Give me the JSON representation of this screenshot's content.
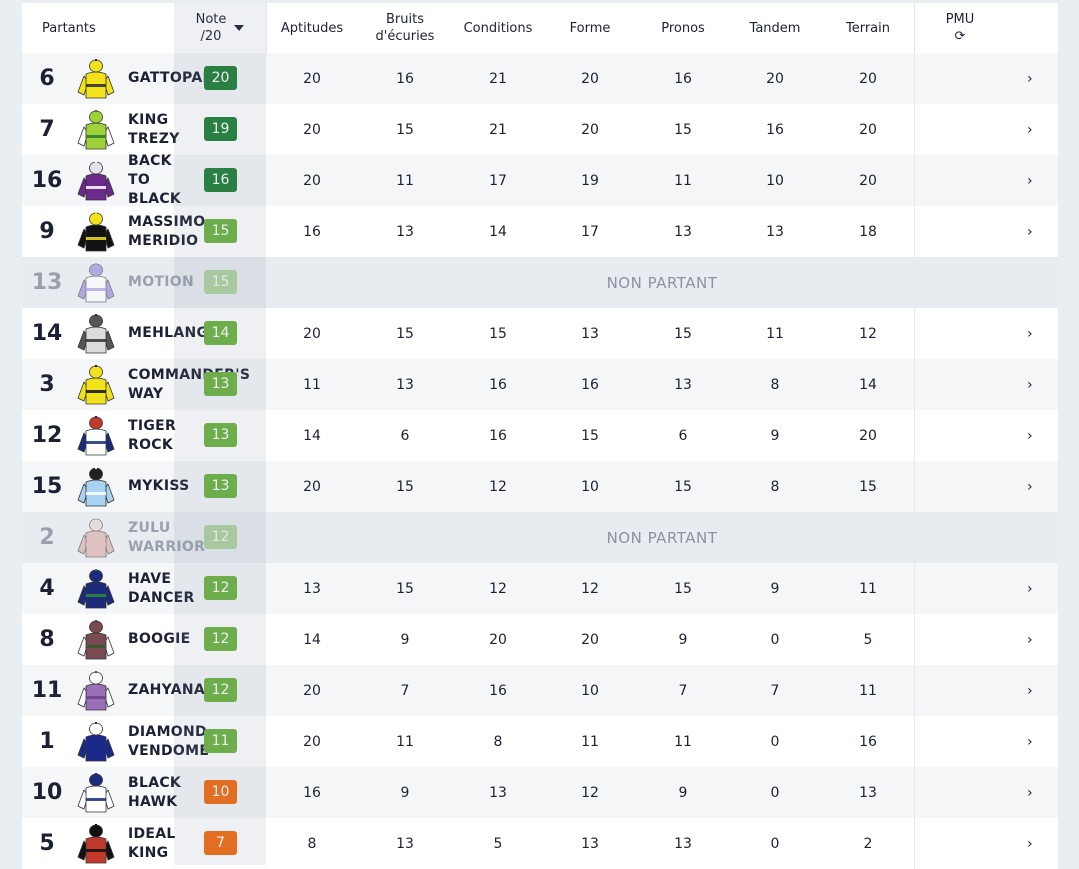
{
  "header": {
    "partants": "Partants",
    "note_line1": "Note",
    "note_line2": "/20",
    "aptitudes": "Aptitudes",
    "bruits_line1": "Bruits",
    "bruits_line2": "d'écuries",
    "conditions": "Conditions",
    "forme": "Forme",
    "pronos": "Pronos",
    "tandem": "Tandem",
    "terrain": "Terrain",
    "pmu": "PMU",
    "pmu_icon": "⟳"
  },
  "non_partant_label": "NON PARTANT",
  "chevron": "›",
  "badge_colors": {
    "dark_green": "#1e7e34",
    "green": "#6cb33f",
    "light_green": "#7cc04a",
    "orange": "#f26a0f"
  },
  "rows": [
    {
      "num": "6",
      "name": "GATTOPARDO",
      "note": "20",
      "color": "#1e7e34",
      "np": false,
      "silk": "yellow",
      "values": [
        "20",
        "16",
        "21",
        "20",
        "16",
        "20",
        "20"
      ]
    },
    {
      "num": "7",
      "name": "KING\nTREZY",
      "note": "19",
      "color": "#1e7e34",
      "np": false,
      "silk": "lime",
      "values": [
        "20",
        "15",
        "21",
        "20",
        "15",
        "16",
        "20"
      ]
    },
    {
      "num": "16",
      "name": "BACK\nTO\nBLACK",
      "note": "16",
      "color": "#1e7e34",
      "np": false,
      "silk": "purple",
      "values": [
        "20",
        "11",
        "17",
        "19",
        "11",
        "10",
        "20"
      ]
    },
    {
      "num": "9",
      "name": "MASSIMO\nMERIDIO",
      "note": "15",
      "color": "#6cb33f",
      "np": false,
      "silk": "black",
      "values": [
        "16",
        "13",
        "14",
        "17",
        "13",
        "13",
        "18"
      ]
    },
    {
      "num": "13",
      "name": "MOTION",
      "note": "15",
      "color": "#6cb33f",
      "np": true,
      "silk": "lavender",
      "values": []
    },
    {
      "num": "14",
      "name": "MEHLANGO",
      "note": "14",
      "color": "#6cb33f",
      "np": false,
      "silk": "checker",
      "values": [
        "20",
        "15",
        "15",
        "13",
        "15",
        "11",
        "12"
      ]
    },
    {
      "num": "3",
      "name": "COMMANDER'S\nWAY",
      "note": "13",
      "color": "#6cb33f",
      "np": false,
      "silk": "yellowblack",
      "values": [
        "11",
        "13",
        "16",
        "16",
        "13",
        "8",
        "14"
      ]
    },
    {
      "num": "12",
      "name": "TIGER\nROCK",
      "note": "13",
      "color": "#6cb33f",
      "np": false,
      "silk": "navywhite",
      "values": [
        "14",
        "6",
        "16",
        "15",
        "6",
        "9",
        "20"
      ]
    },
    {
      "num": "15",
      "name": "MYKISS",
      "note": "13",
      "color": "#6cb33f",
      "np": false,
      "silk": "lightblue",
      "values": [
        "20",
        "15",
        "12",
        "10",
        "15",
        "8",
        "15"
      ]
    },
    {
      "num": "2",
      "name": "ZULU\nWARRIOR",
      "note": "12",
      "color": "#6cb33f",
      "np": true,
      "silk": "pink",
      "values": []
    },
    {
      "num": "4",
      "name": "HAVE\nDANCER",
      "note": "12",
      "color": "#6cb33f",
      "np": false,
      "silk": "navygreen",
      "values": [
        "13",
        "15",
        "12",
        "12",
        "15",
        "9",
        "11"
      ]
    },
    {
      "num": "8",
      "name": "BOOGIE",
      "note": "12",
      "color": "#6cb33f",
      "np": false,
      "silk": "diamond",
      "values": [
        "14",
        "9",
        "20",
        "20",
        "9",
        "0",
        "5"
      ]
    },
    {
      "num": "11",
      "name": "ZAHYANA",
      "note": "12",
      "color": "#6cb33f",
      "np": false,
      "silk": "mauve",
      "values": [
        "20",
        "7",
        "16",
        "10",
        "7",
        "7",
        "11"
      ]
    },
    {
      "num": "1",
      "name": "DIAMOND\nVENDOME",
      "note": "11",
      "color": "#6cb33f",
      "np": false,
      "silk": "navy",
      "values": [
        "20",
        "11",
        "8",
        "11",
        "11",
        "0",
        "16"
      ]
    },
    {
      "num": "10",
      "name": "BLACK\nHAWK",
      "note": "10",
      "color": "#f26a0f",
      "np": false,
      "silk": "white",
      "values": [
        "16",
        "9",
        "13",
        "12",
        "9",
        "0",
        "13"
      ]
    },
    {
      "num": "5",
      "name": "IDEAL\nKING",
      "note": "7",
      "color": "#f26a0f",
      "np": false,
      "silk": "redblack",
      "values": [
        "8",
        "13",
        "5",
        "13",
        "13",
        "0",
        "2"
      ]
    }
  ]
}
